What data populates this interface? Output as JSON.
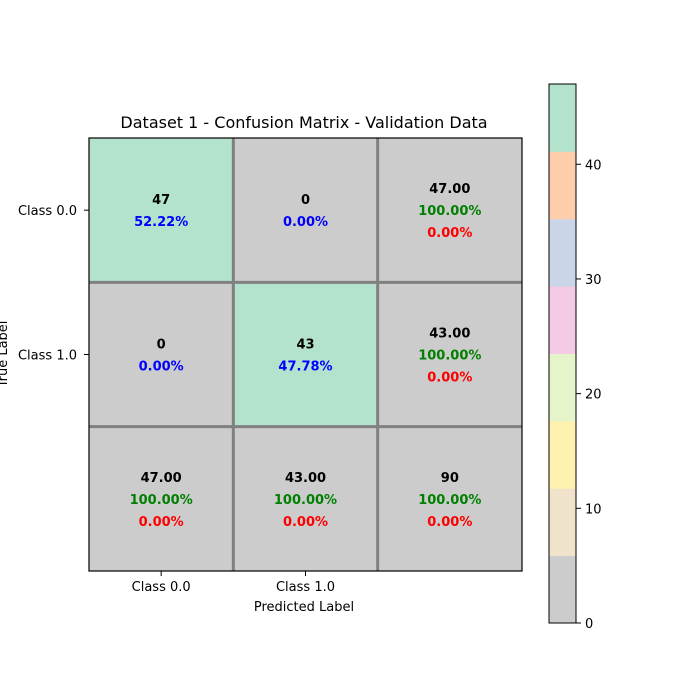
{
  "chart_data": {
    "type": "heatmap",
    "title": "Dataset 1 - Confusion Matrix - Validation Data",
    "xlabel": "Predicted Label",
    "ylabel": "True Label",
    "x_ticklabels": [
      "Class 0.0",
      "Class 1.0"
    ],
    "y_ticklabels": [
      "Class 0.0",
      "Class 1.0"
    ],
    "colormap": [
      "#cccccc",
      "#f1e2cc",
      "#fff2ae",
      "#e6f5c9",
      "#f4cae4",
      "#cbd5e8",
      "#fdcdac",
      "#b3e2cd"
    ],
    "colorbar": {
      "range": [
        0,
        47
      ],
      "ticks": [
        0,
        10,
        20,
        30,
        40
      ],
      "tick_labels": [
        "0",
        "10",
        "20",
        "30",
        "40"
      ]
    },
    "cells": [
      [
        {
          "lines": [
            {
              "text": "47",
              "color": "#000000"
            },
            {
              "text": "52.22%",
              "color": "#0000ff"
            }
          ],
          "fill": "#b3e2cd"
        },
        {
          "lines": [
            {
              "text": "0",
              "color": "#000000"
            },
            {
              "text": "0.00%",
              "color": "#0000ff"
            }
          ],
          "fill": "#cccccc"
        },
        {
          "lines": [
            {
              "text": "47.00",
              "color": "#000000"
            },
            {
              "text": "100.00%",
              "color": "#008000"
            },
            {
              "text": "0.00%",
              "color": "#ff0000"
            }
          ],
          "fill": "#cccccc"
        }
      ],
      [
        {
          "lines": [
            {
              "text": "0",
              "color": "#000000"
            },
            {
              "text": "0.00%",
              "color": "#0000ff"
            }
          ],
          "fill": "#cccccc"
        },
        {
          "lines": [
            {
              "text": "43",
              "color": "#000000"
            },
            {
              "text": "47.78%",
              "color": "#0000ff"
            }
          ],
          "fill": "#b3e2cd"
        },
        {
          "lines": [
            {
              "text": "43.00",
              "color": "#000000"
            },
            {
              "text": "100.00%",
              "color": "#008000"
            },
            {
              "text": "0.00%",
              "color": "#ff0000"
            }
          ],
          "fill": "#cccccc"
        }
      ],
      [
        {
          "lines": [
            {
              "text": "47.00",
              "color": "#000000"
            },
            {
              "text": "100.00%",
              "color": "#008000"
            },
            {
              "text": "0.00%",
              "color": "#ff0000"
            }
          ],
          "fill": "#cccccc"
        },
        {
          "lines": [
            {
              "text": "43.00",
              "color": "#000000"
            },
            {
              "text": "100.00%",
              "color": "#008000"
            },
            {
              "text": "0.00%",
              "color": "#ff0000"
            }
          ],
          "fill": "#cccccc"
        },
        {
          "lines": [
            {
              "text": "90",
              "color": "#000000"
            },
            {
              "text": "100.00%",
              "color": "#008000"
            },
            {
              "text": "0.00%",
              "color": "#ff0000"
            }
          ],
          "fill": "#cccccc"
        }
      ]
    ],
    "grid_line_color": "#808080"
  }
}
